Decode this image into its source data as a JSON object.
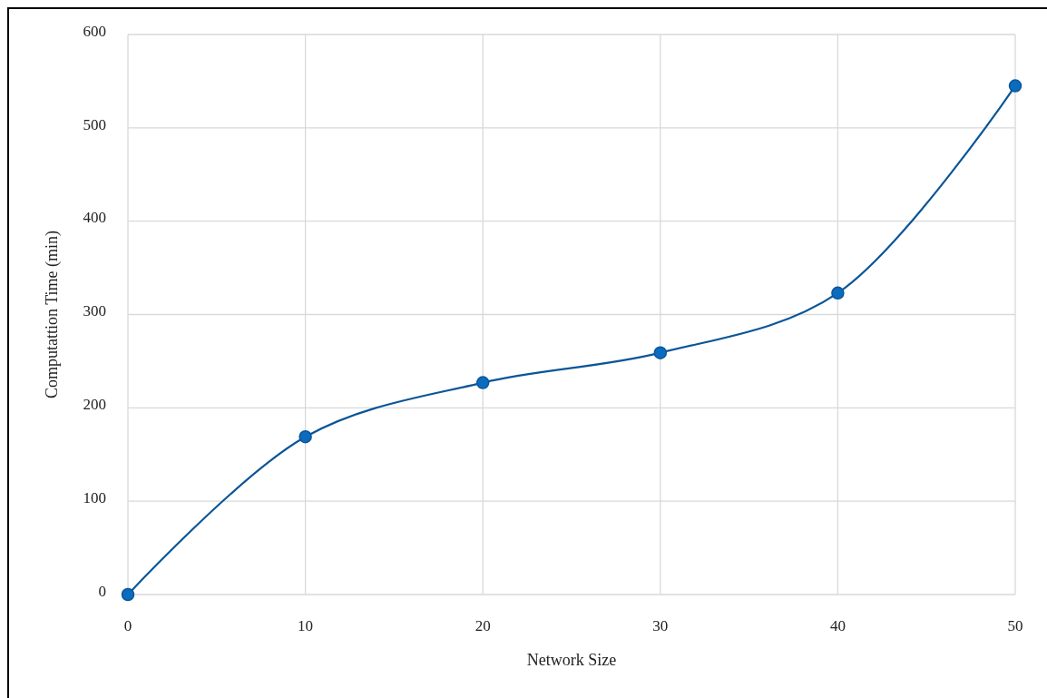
{
  "chart_data": {
    "type": "line",
    "xlabel": "Network Size",
    "ylabel": "Computattion Time (min)",
    "x": [
      0,
      10,
      20,
      30,
      40,
      50
    ],
    "series": [
      {
        "color": "#0a5597",
        "values": [
          0,
          169,
          227,
          259,
          323,
          545
        ]
      }
    ],
    "xlim": [
      0,
      50
    ],
    "xticks": [
      0,
      10,
      20,
      30,
      40,
      50
    ],
    "ylim": [
      0,
      600
    ],
    "yticks": [
      0,
      100,
      200,
      300,
      400,
      500,
      600
    ],
    "grid": true,
    "marker": "circle",
    "line_style": "solid"
  }
}
